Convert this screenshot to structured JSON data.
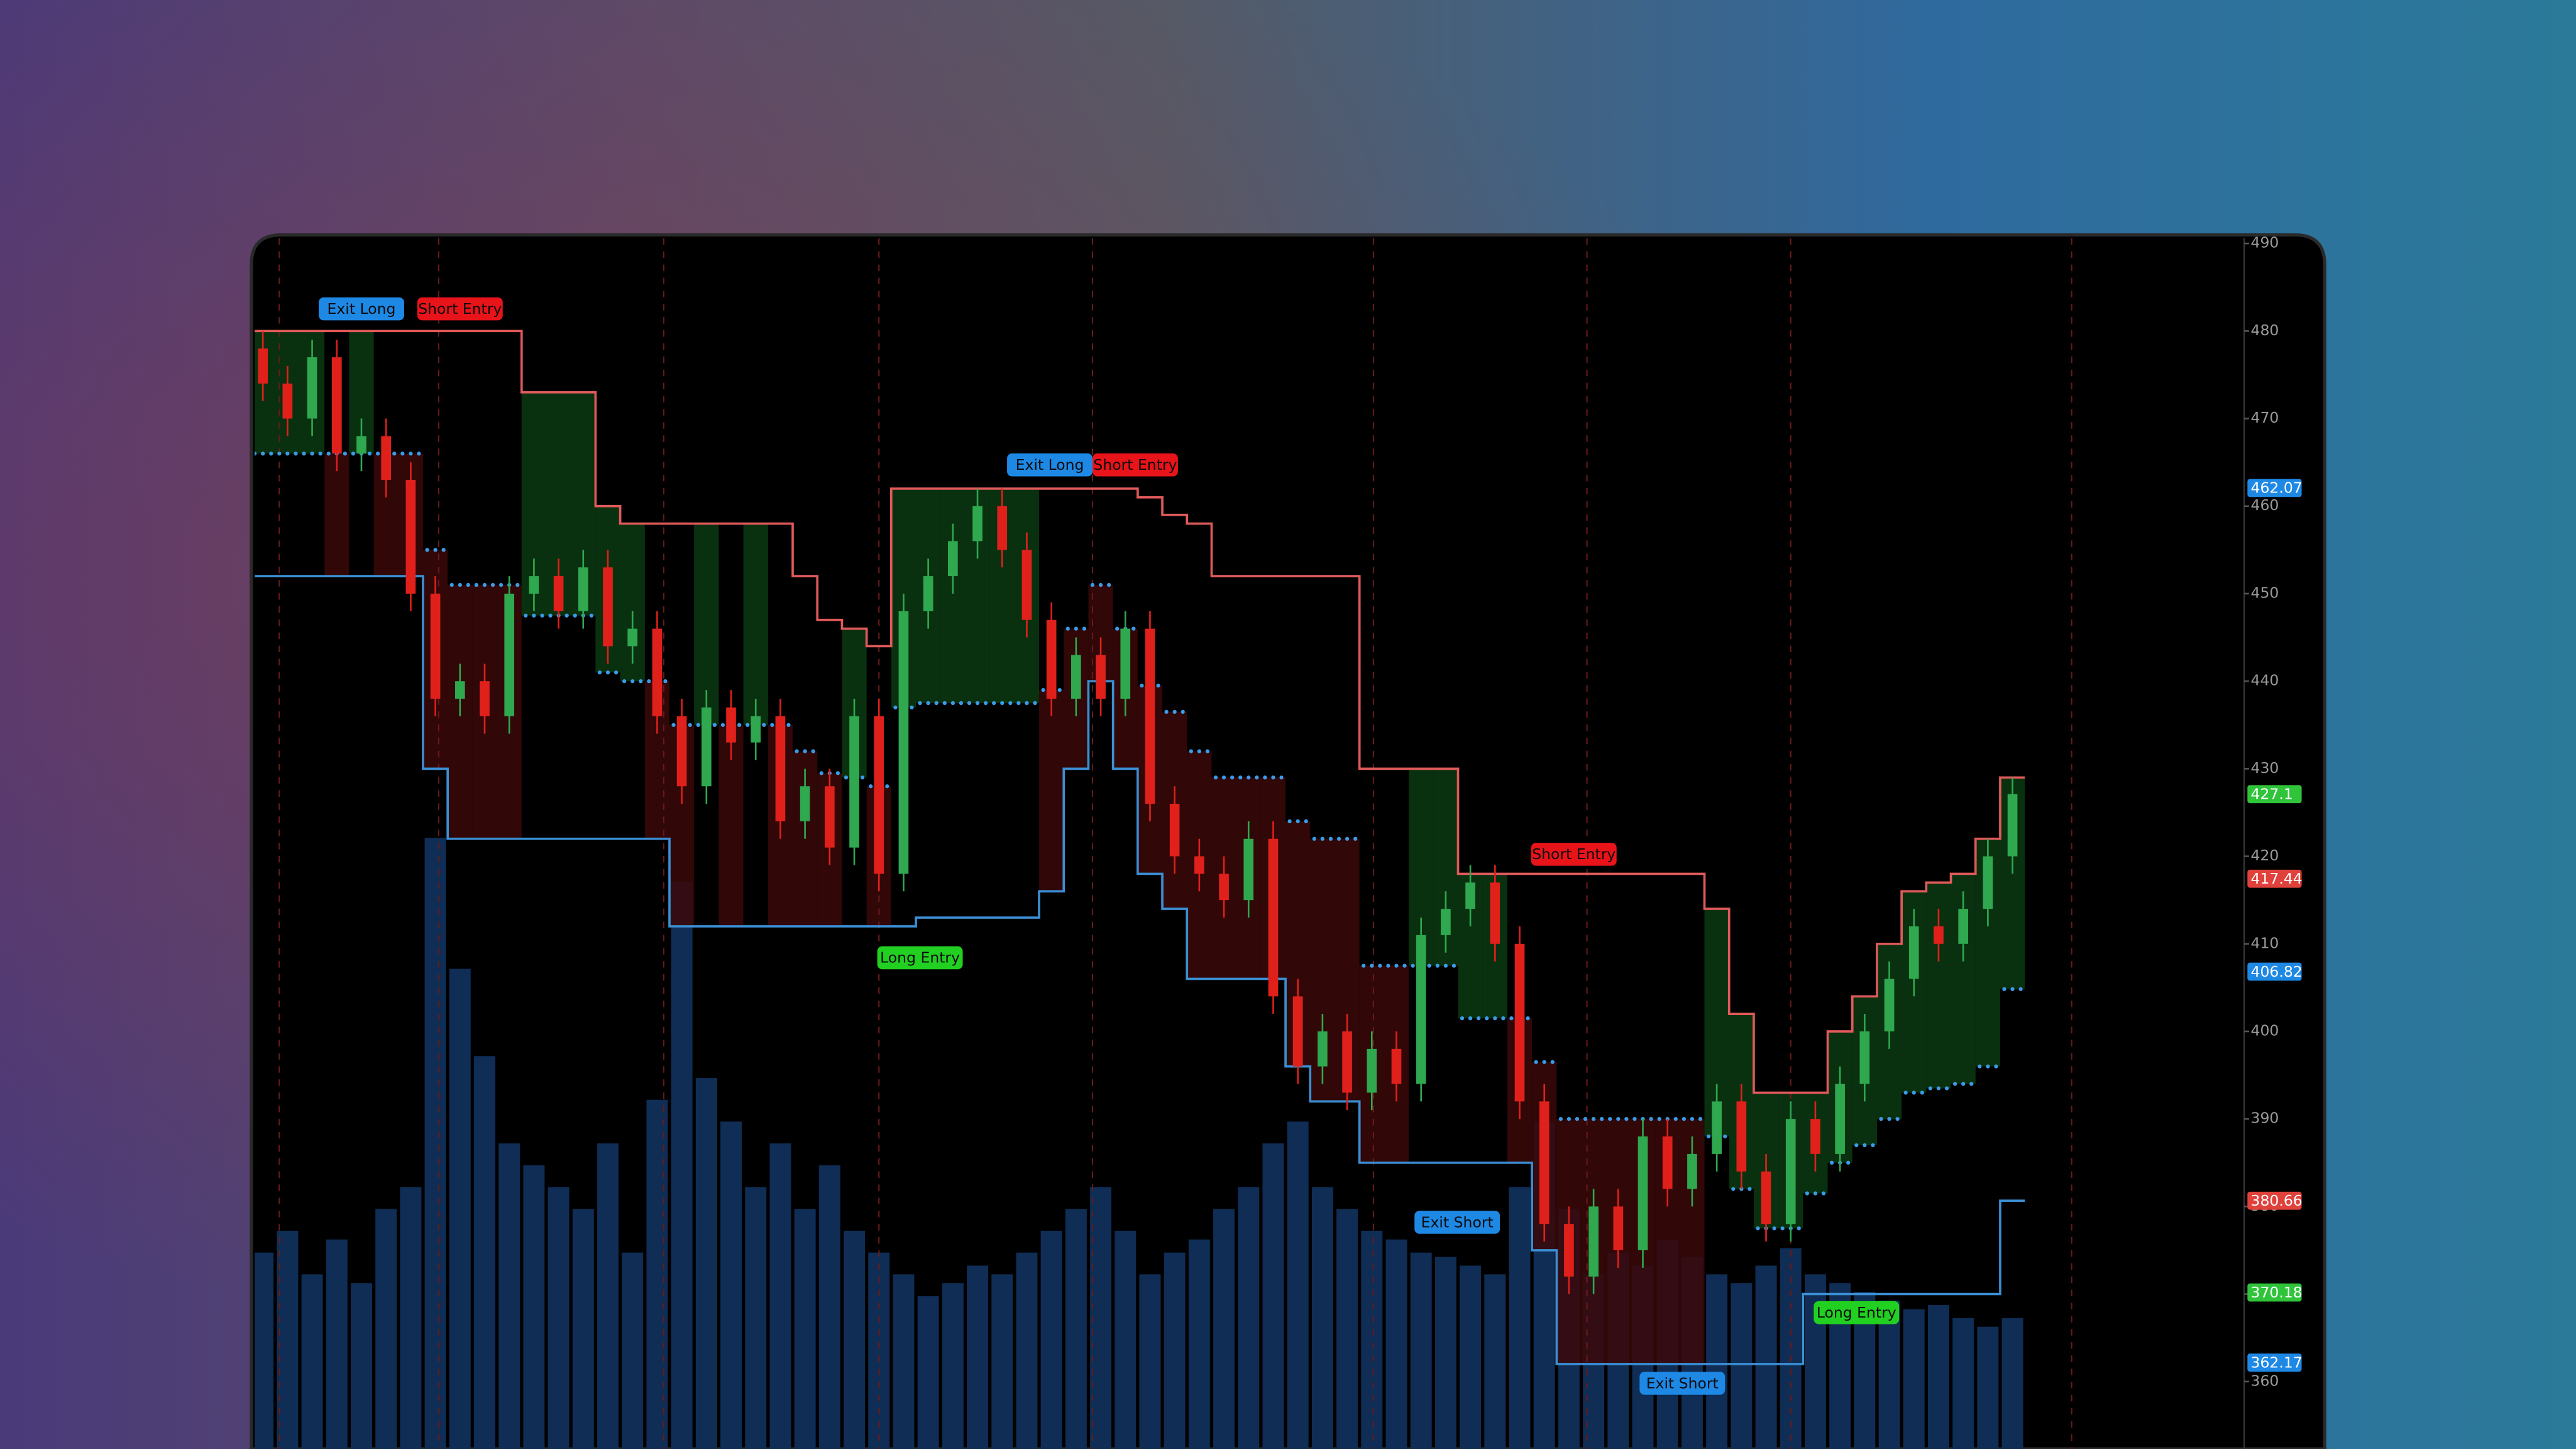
{
  "chart_data": {
    "type": "candlestick",
    "ylim": [
      352.3,
      490.6
    ],
    "yticks": [
      360,
      370,
      380,
      390,
      400,
      410,
      420,
      430,
      440,
      450,
      460,
      470,
      480,
      490
    ],
    "candles": [
      [
        478,
        480,
        472,
        474
      ],
      [
        474,
        476,
        468,
        470
      ],
      [
        470,
        479,
        468,
        477
      ],
      [
        477,
        479,
        464,
        466
      ],
      [
        466,
        470,
        464,
        468
      ],
      [
        468,
        470,
        461,
        463
      ],
      [
        463,
        465,
        448,
        450
      ],
      [
        450,
        452,
        436,
        438
      ],
      [
        438,
        442,
        436,
        440
      ],
      [
        440,
        442,
        434,
        436
      ],
      [
        436,
        452,
        434,
        450
      ],
      [
        450,
        454,
        448,
        452
      ],
      [
        452,
        454,
        446,
        448
      ],
      [
        448,
        455,
        446,
        453
      ],
      [
        453,
        455,
        442,
        444
      ],
      [
        444,
        448,
        442,
        446
      ],
      [
        446,
        448,
        434,
        436
      ],
      [
        436,
        438,
        426,
        428
      ],
      [
        428,
        439,
        426,
        437
      ],
      [
        437,
        439,
        431,
        433
      ],
      [
        433,
        438,
        431,
        436
      ],
      [
        436,
        438,
        422,
        424
      ],
      [
        424,
        430,
        422,
        428
      ],
      [
        428,
        430,
        419,
        421
      ],
      [
        421,
        438,
        419,
        436
      ],
      [
        436,
        438,
        416,
        418
      ],
      [
        418,
        450,
        416,
        448
      ],
      [
        448,
        454,
        446,
        452
      ],
      [
        452,
        458,
        450,
        456
      ],
      [
        456,
        462,
        454,
        460
      ],
      [
        460,
        462,
        453,
        455
      ],
      [
        455,
        457,
        445,
        447
      ],
      [
        447,
        449,
        436,
        438
      ],
      [
        438,
        445,
        436,
        443
      ],
      [
        443,
        445,
        436,
        438
      ],
      [
        438,
        448,
        436,
        446
      ],
      [
        446,
        448,
        424,
        426
      ],
      [
        426,
        428,
        418,
        420
      ],
      [
        420,
        422,
        416,
        418
      ],
      [
        418,
        420,
        413,
        415
      ],
      [
        415,
        424,
        413,
        422
      ],
      [
        422,
        424,
        402,
        404
      ],
      [
        404,
        406,
        394,
        396
      ],
      [
        396,
        402,
        394,
        400
      ],
      [
        400,
        402,
        391,
        393
      ],
      [
        393,
        400,
        391,
        398
      ],
      [
        398,
        400,
        392,
        394
      ],
      [
        394,
        413,
        392,
        411
      ],
      [
        411,
        416,
        409,
        414
      ],
      [
        414,
        419,
        412,
        417
      ],
      [
        417,
        419,
        408,
        410
      ],
      [
        410,
        412,
        390,
        392
      ],
      [
        392,
        394,
        376,
        378
      ],
      [
        378,
        380,
        370,
        372
      ],
      [
        372,
        382,
        370,
        380
      ],
      [
        380,
        382,
        373,
        375
      ],
      [
        375,
        390,
        373,
        388
      ],
      [
        388,
        390,
        380,
        382
      ],
      [
        382,
        388,
        380,
        386
      ],
      [
        386,
        394,
        384,
        392
      ],
      [
        392,
        394,
        382,
        384
      ],
      [
        384,
        386,
        376,
        378
      ],
      [
        378,
        392,
        376,
        390
      ],
      [
        390,
        392,
        384,
        386
      ],
      [
        386,
        396,
        384,
        394
      ],
      [
        394,
        402,
        392,
        400
      ],
      [
        400,
        408,
        398,
        406
      ],
      [
        406,
        414,
        404,
        412
      ],
      [
        412,
        414,
        408,
        410
      ],
      [
        410,
        416,
        408,
        414
      ],
      [
        414,
        422,
        412,
        420
      ],
      [
        420,
        429,
        418,
        427.1
      ]
    ],
    "upper_band": [
      480,
      480,
      480,
      480,
      480,
      480,
      480,
      480,
      480,
      480,
      480,
      473,
      473,
      473,
      460,
      458,
      458,
      458,
      458,
      458,
      458,
      458,
      452,
      447,
      446,
      444,
      462,
      462,
      462,
      462,
      462,
      462,
      462,
      462,
      462,
      462,
      461,
      459,
      458,
      452,
      452,
      452,
      452,
      452,
      452,
      430,
      430,
      430,
      430,
      418,
      418,
      418,
      418,
      418,
      418,
      418,
      418,
      418,
      418,
      414,
      402,
      393,
      393,
      393,
      400,
      404,
      410,
      416,
      417,
      418,
      422,
      429
    ],
    "lower_band": [
      452,
      452,
      452,
      452,
      452,
      452,
      452,
      430,
      422,
      422,
      422,
      422,
      422,
      422,
      422,
      422,
      422,
      412,
      412,
      412,
      412,
      412,
      412,
      412,
      412,
      412,
      412,
      413,
      413,
      413,
      413,
      413,
      416,
      430,
      440,
      430,
      418,
      414,
      406,
      406,
      406,
      406,
      396,
      392,
      392,
      385,
      385,
      385,
      385,
      385,
      385,
      385,
      375,
      362,
      362,
      362,
      362,
      362,
      362,
      362,
      362,
      362,
      362,
      370,
      370,
      370,
      370,
      370,
      370,
      370,
      370,
      380.66
    ],
    "volume": [
      45,
      50,
      40,
      48,
      38,
      55,
      60,
      140,
      110,
      90,
      70,
      65,
      60,
      55,
      70,
      45,
      80,
      130,
      85,
      75,
      60,
      70,
      55,
      65,
      50,
      45,
      40,
      35,
      38,
      42,
      40,
      45,
      50,
      55,
      60,
      50,
      40,
      45,
      48,
      55,
      60,
      70,
      75,
      60,
      55,
      50,
      48,
      45,
      44,
      42,
      40,
      60,
      75,
      55,
      40,
      45,
      42,
      48,
      44,
      40,
      38,
      42,
      46,
      40,
      38,
      36,
      34,
      32,
      33,
      30,
      28,
      30
    ],
    "up_color": "#2fa84f",
    "down_color": "#e0201b",
    "upper_color": "#e05a5a",
    "lower_color": "#3b8fd4",
    "volume_color": "#0f2d55",
    "price_markers": [
      462.07,
      427.1,
      417.44,
      406.82,
      380.66,
      370.18,
      362.17
    ],
    "price_marker_colors": [
      "#1e88e5",
      "#2fc43a",
      "#e0413b",
      "#1e88e5",
      "#e0413b",
      "#2fc43a",
      "#1e88e5"
    ],
    "signals": [
      {
        "label": "Exit Long",
        "color": "#1e88e5"
      },
      {
        "label": "Short Entry",
        "color": "#e8141a"
      },
      {
        "label": "Exit Long",
        "color": "#1e88e5"
      },
      {
        "label": "Short Entry",
        "color": "#e8141a"
      },
      {
        "label": "Long Entry",
        "color": "#22d022"
      },
      {
        "label": "Exit Short",
        "color": "#1e88e5"
      },
      {
        "label": "Short Entry",
        "color": "#e8141a"
      },
      {
        "label": "Exit Short",
        "color": "#1e88e5"
      },
      {
        "label": "Long Entry",
        "color": "#22d022"
      }
    ]
  }
}
